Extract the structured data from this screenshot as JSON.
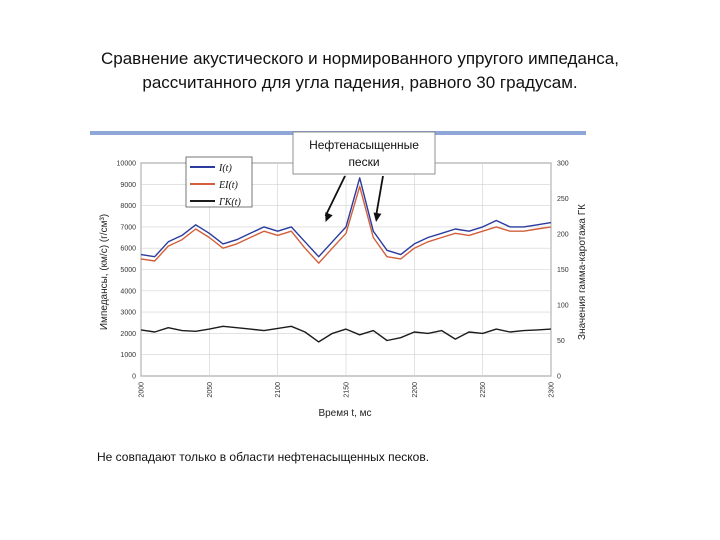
{
  "slide": {
    "title_line1": "Сравнение акустического и нормированного упругого импеданса,",
    "title_line2": "рассчитанного для угла падения, равного 30 градусам.",
    "note": "Не совпадают только в области нефтенасыщенных песков."
  },
  "colors": {
    "impedance": "#2b3a9e",
    "elastic": "#d2603a",
    "gamma": "#1c1c1c",
    "topbar": "#8fa6d9"
  },
  "chart_data": {
    "type": "line",
    "xlabel": "Время t, мс",
    "ylabel_left": "Импедансы, (км/с) (г/см³)",
    "ylabel_right": "Значения гамма-каротажа ГК",
    "xlim": [
      2000,
      2300
    ],
    "ylim_left": [
      0,
      10000
    ],
    "ylim_right": [
      0,
      300
    ],
    "xticks": [
      "2000",
      "2050",
      "2100",
      "2150",
      "2200",
      "2250",
      "2300"
    ],
    "yticks_left": [
      "0",
      "1000",
      "2000",
      "3000",
      "4000",
      "5000",
      "6000",
      "7000",
      "8000",
      "9000",
      "10000"
    ],
    "yticks_right": [
      "0",
      "50",
      "100",
      "150",
      "200",
      "250",
      "300"
    ],
    "legend": [
      "I(t)",
      "EI(t)",
      "ГК(t)"
    ],
    "annotation": {
      "line1": "Нефтенасыщенные",
      "line2": "пески",
      "arrow_x": [
        2135,
        2172
      ]
    },
    "x": [
      2000,
      2010,
      2020,
      2030,
      2040,
      2050,
      2060,
      2070,
      2080,
      2090,
      2100,
      2110,
      2120,
      2130,
      2140,
      2150,
      2160,
      2170,
      2180,
      2190,
      2200,
      2210,
      2220,
      2230,
      2240,
      2250,
      2260,
      2270,
      2280,
      2290,
      2300
    ],
    "series": [
      {
        "name": "I(t)",
        "axis": "left",
        "values": [
          5700,
          5600,
          6300,
          6600,
          7100,
          6700,
          6200,
          6400,
          6700,
          7000,
          6800,
          7000,
          6300,
          5600,
          6300,
          7000,
          9300,
          6800,
          5900,
          5700,
          6200,
          6500,
          6700,
          6900,
          6800,
          7000,
          7300,
          7000,
          7000,
          7100,
          7200
        ]
      },
      {
        "name": "EI(t)",
        "axis": "left",
        "values": [
          5500,
          5400,
          6100,
          6400,
          6900,
          6500,
          6000,
          6200,
          6500,
          6800,
          6600,
          6800,
          6000,
          5300,
          6000,
          6700,
          8900,
          6500,
          5600,
          5500,
          6000,
          6300,
          6500,
          6700,
          6600,
          6800,
          7000,
          6800,
          6800,
          6900,
          7000
        ]
      },
      {
        "name": "ГК(t)",
        "axis": "right",
        "values": [
          65,
          62,
          68,
          64,
          63,
          66,
          70,
          68,
          66,
          64,
          67,
          70,
          62,
          48,
          60,
          66,
          58,
          64,
          50,
          54,
          62,
          60,
          64,
          52,
          62,
          60,
          66,
          62,
          64,
          65,
          66
        ]
      }
    ]
  }
}
